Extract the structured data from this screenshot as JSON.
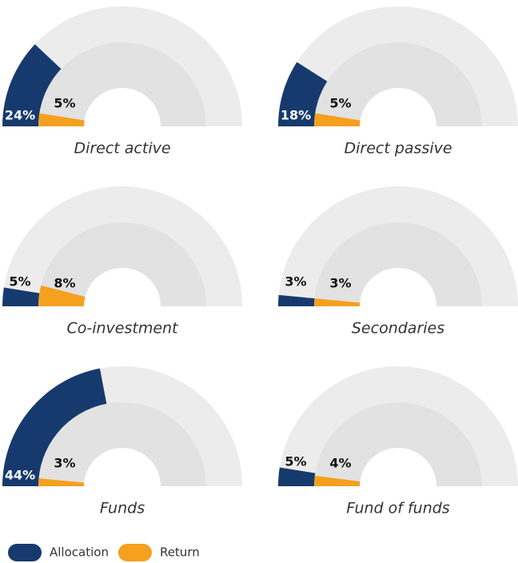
{
  "chart_data": {
    "type": "gauge",
    "categories": [
      "Direct active",
      "Direct passive",
      "Co-investment",
      "Secondaries",
      "Funds",
      "Fund of funds"
    ],
    "ylim": [
      0,
      100
    ],
    "series": [
      {
        "name": "Allocation",
        "color": "#173a6e",
        "values": [
          24,
          18,
          5,
          3,
          44,
          5
        ],
        "value_labels": [
          "24%",
          "18%",
          "5%",
          "3%",
          "44%",
          "5%"
        ]
      },
      {
        "name": "Return",
        "color": "#f5a01e",
        "values": [
          5,
          5,
          8,
          3,
          3,
          4
        ],
        "value_labels": [
          "5%",
          "5%",
          "8%",
          "3%",
          "3%",
          "4%"
        ]
      }
    ]
  }
}
